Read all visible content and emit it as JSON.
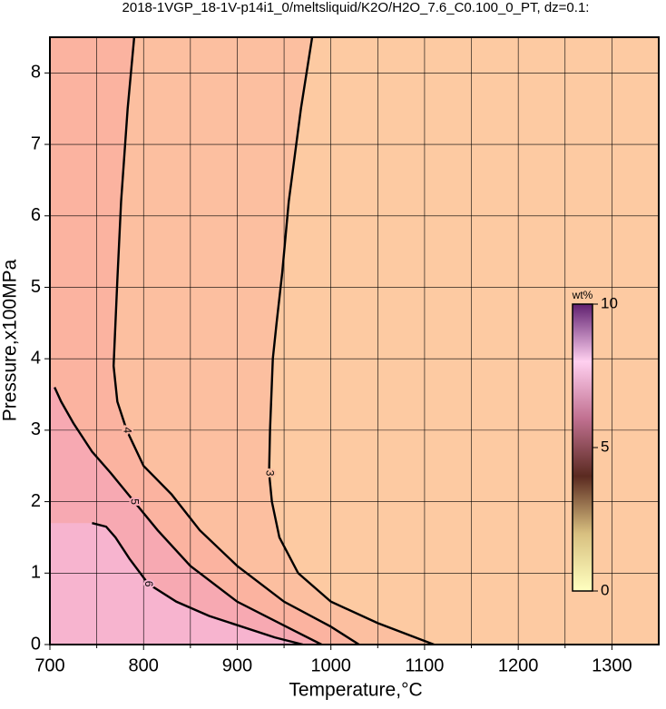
{
  "chart_data": {
    "type": "contour",
    "title": "2018-1VGP_18-1V-p14i1_0/meltsliquid/K2O/H2O_7.6_C0.100_0_PT, dz=0.1:",
    "xlabel": "Temperature,°C",
    "ylabel": "Pressure,x100MPa",
    "xlim": [
      700,
      1350
    ],
    "ylim": [
      0,
      8.5
    ],
    "xticks": [
      700,
      800,
      900,
      1000,
      1100,
      1200,
      1300
    ],
    "xminor": [
      750,
      850,
      950,
      1050,
      1150,
      1250
    ],
    "yticks": [
      0,
      1,
      2,
      3,
      4,
      5,
      6,
      7,
      8
    ],
    "grid": true,
    "background": "#fdcaa2",
    "contours": [
      {
        "level": 3,
        "color": "#fcbfa0",
        "x": [
          980,
          968,
          955,
          948,
          942,
          938,
          935,
          934,
          937,
          945,
          965,
          1000,
          1050,
          1090,
          1110
        ],
        "y": [
          8.5,
          7.5,
          6.2,
          5.2,
          4.5,
          4.0,
          3.0,
          2.4,
          2.0,
          1.5,
          1.0,
          0.6,
          0.3,
          0.1,
          0
        ]
      },
      {
        "level": 4,
        "color": "#fbb3a0",
        "x": [
          790,
          783,
          776,
          772,
          770,
          769,
          768,
          772,
          782,
          800,
          830,
          860,
          900,
          950,
          1000,
          1030
        ],
        "y": [
          8.5,
          7.5,
          6.2,
          5.1,
          4.5,
          4.2,
          3.9,
          3.4,
          3.0,
          2.5,
          2.1,
          1.6,
          1.1,
          0.6,
          0.25,
          0
        ]
      },
      {
        "level": 5,
        "color": "#f7a9b2",
        "x": [
          705,
          712,
          725,
          745,
          765,
          790,
          815,
          850,
          900,
          960,
          990
        ],
        "y": [
          3.6,
          3.4,
          3.1,
          2.7,
          2.4,
          2.0,
          1.6,
          1.1,
          0.6,
          0.2,
          0
        ]
      },
      {
        "level": 6,
        "color": "#f7b4cf",
        "x": [
          745,
          760,
          770,
          785,
          805,
          835,
          870,
          940,
          970
        ],
        "y": [
          1.7,
          1.65,
          1.5,
          1.2,
          0.85,
          0.6,
          0.4,
          0.1,
          0
        ]
      }
    ],
    "colorbar": {
      "label": "wt%",
      "lim": [
        0,
        10
      ],
      "ticks": [
        0,
        5,
        10
      ],
      "colors": [
        "#ffffc0",
        "#d8c080",
        "#5a2a20",
        "#c07090",
        "#ffd0f0",
        "#602070"
      ]
    }
  }
}
